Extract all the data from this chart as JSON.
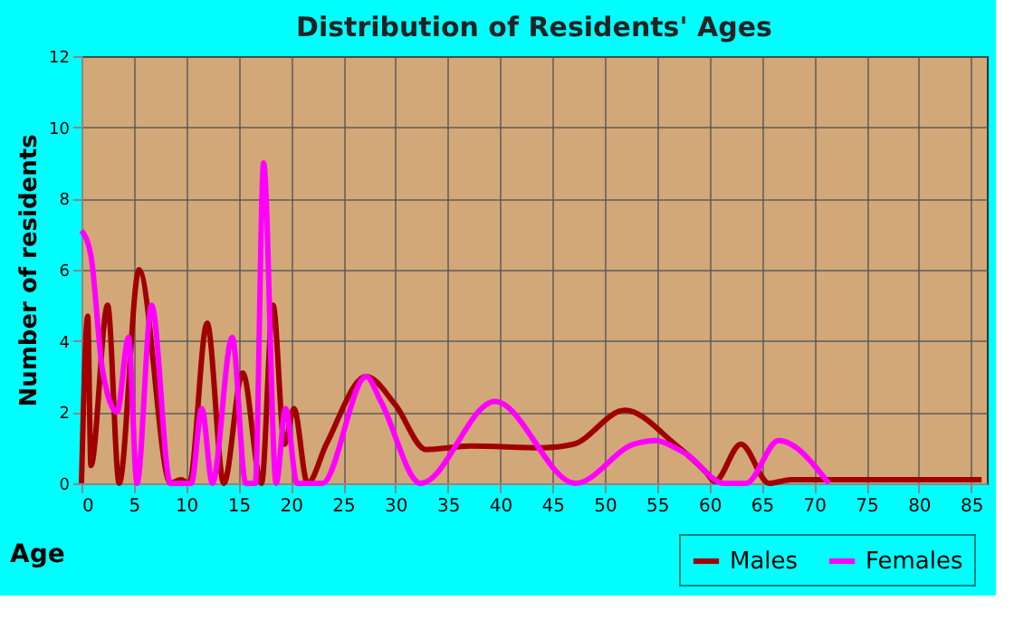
{
  "chart_data": {
    "type": "line",
    "title": "Distribution of Residents' Ages",
    "xlabel": "Age",
    "ylabel": "Number of residents",
    "xlim": [
      0,
      86.5
    ],
    "xticks": [
      0,
      5,
      10,
      15,
      20,
      25,
      30,
      35,
      40,
      45,
      50,
      55,
      60,
      65,
      70,
      75,
      80,
      85
    ],
    "ylim": [
      0,
      12
    ],
    "yticks": [
      0,
      2,
      4,
      6,
      8,
      10,
      12
    ],
    "grid": true,
    "legend": "bottom right",
    "line_style": "solid",
    "marker": "none",
    "series": [
      {
        "name": "Males",
        "color": "#a00000",
        "x": [
          0,
          0.6,
          0.9,
          2.5,
          3.6,
          5.5,
          8.5,
          9.5,
          10.3,
          12,
          13.6,
          15.4,
          17.2,
          18.3,
          19.4,
          20.3,
          21.6,
          23.4,
          27.2,
          30,
          32.9,
          37.2,
          44,
          47,
          51.9,
          56.7,
          59.7,
          60.5,
          63,
          65.7,
          67.8,
          86
        ],
        "values": [
          0,
          4.7,
          0.5,
          5.0,
          0,
          6.0,
          0,
          0.1,
          0,
          4.5,
          0,
          3.1,
          0,
          5.0,
          1.1,
          2.1,
          0,
          1.1,
          3.0,
          2.2,
          0.95,
          1.05,
          1.0,
          1.1,
          2.05,
          1.1,
          0.3,
          0.05,
          1.1,
          0,
          0.1,
          0.1
        ]
      },
      {
        "name": "Females",
        "color": "#ff00ff",
        "x": [
          0,
          0.9,
          2,
          3.4,
          4.5,
          5.3,
          6.7,
          8.5,
          10.5,
          11.5,
          12.5,
          14.4,
          15.7,
          16.6,
          17.4,
          18.6,
          19.5,
          20.6,
          23,
          27.2,
          28.6,
          32.4,
          39.5,
          47.2,
          52.8,
          54.9,
          56.7,
          57.9,
          61.4,
          63.5,
          66.6,
          71.4
        ],
        "values": [
          7.1,
          6.4,
          3.2,
          2.0,
          4.1,
          0,
          5.0,
          0,
          0,
          2.1,
          0,
          4.1,
          0,
          0,
          9.0,
          0,
          2.1,
          0,
          0,
          3.0,
          2.3,
          0,
          2.3,
          0,
          1.1,
          1.2,
          1.0,
          0.8,
          0,
          0,
          1.2,
          0
        ]
      }
    ]
  }
}
